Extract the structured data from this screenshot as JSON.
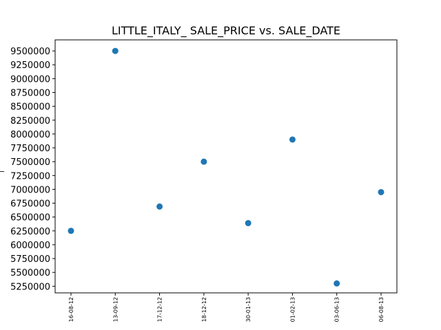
{
  "chart_data": {
    "type": "scatter",
    "title": "LITTLE_ITALY_ SALE_PRICE vs. SALE_DATE",
    "xlabel": "",
    "ylabel": "_",
    "categories": [
      "16-08-12",
      "13-09-12",
      "17-12-12",
      "18-12-12",
      "30-01-13",
      "01-02-13",
      "03-06-13",
      "06-08-13"
    ],
    "series": [
      {
        "values": [
          6250000,
          9500000,
          6690000,
          7500000,
          6390000,
          7900000,
          5300000,
          6950000
        ],
        "color": "#1f77b4"
      }
    ],
    "ylim": [
      5130000,
      9700000
    ],
    "yticks": [
      5250000,
      5500000,
      5750000,
      6000000,
      6250000,
      6500000,
      6750000,
      7000000,
      7250000,
      7500000,
      7750000,
      8000000,
      8250000,
      8500000,
      8750000,
      9000000,
      9250000,
      9500000
    ],
    "grid": false,
    "legend": "none"
  }
}
